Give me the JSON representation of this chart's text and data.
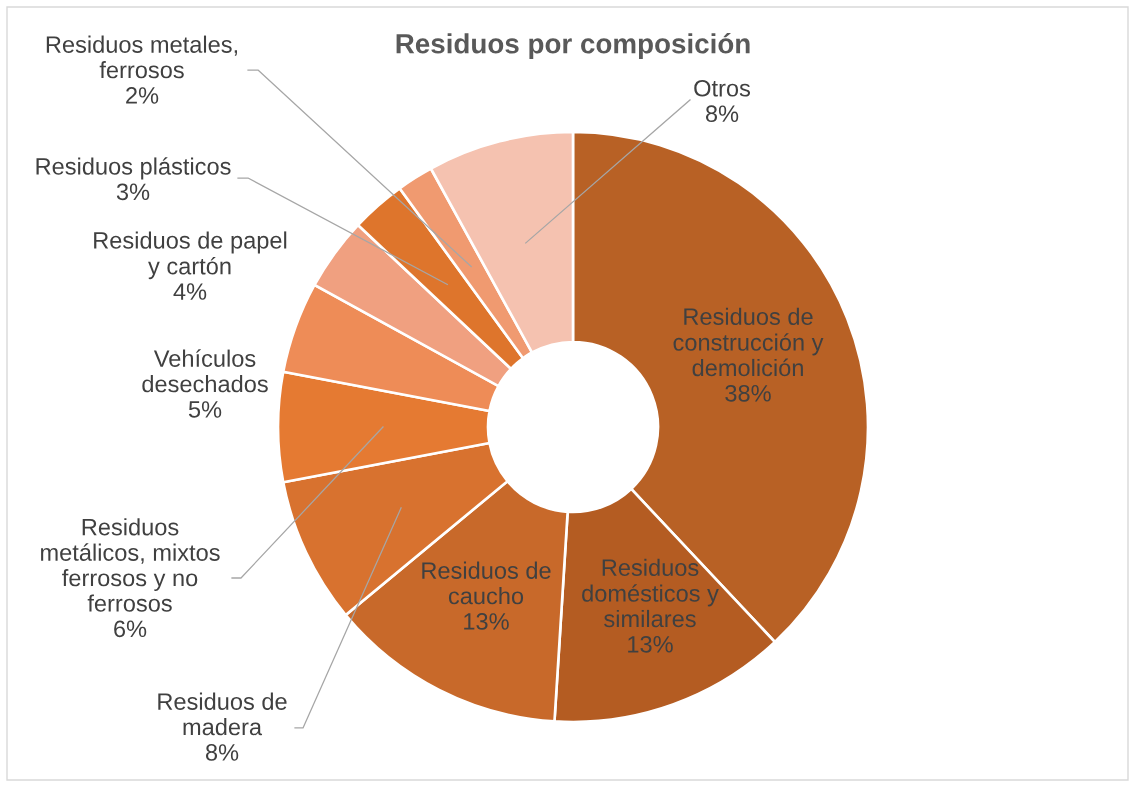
{
  "chart_data": {
    "type": "donut",
    "title": "Residuos por composición",
    "categories": [
      "Residuos de construcción y demolición",
      "Residuos domésticos y similares",
      "Residuos de caucho",
      "Residuos de madera",
      "Residuos metálicos, mixtos ferrosos y no ferrosos",
      "Vehículos desechados",
      "Residuos de papel y cartón",
      "Residuos plásticos",
      "Residuos metales, ferrosos",
      "Otros"
    ],
    "values": [
      38,
      13,
      13,
      8,
      6,
      5,
      4,
      3,
      2,
      8
    ],
    "colors": [
      "#b86125",
      "#b45c22",
      "#c8692a",
      "#d8722f",
      "#e57a32",
      "#ee8c57",
      "#f0a080",
      "#de752c",
      "#f09a70",
      "#f5c2b0"
    ],
    "value_labels": [
      "38%",
      "13%",
      "13%",
      "8%",
      "6%",
      "5%",
      "4%",
      "3%",
      "2%",
      "8%"
    ]
  }
}
